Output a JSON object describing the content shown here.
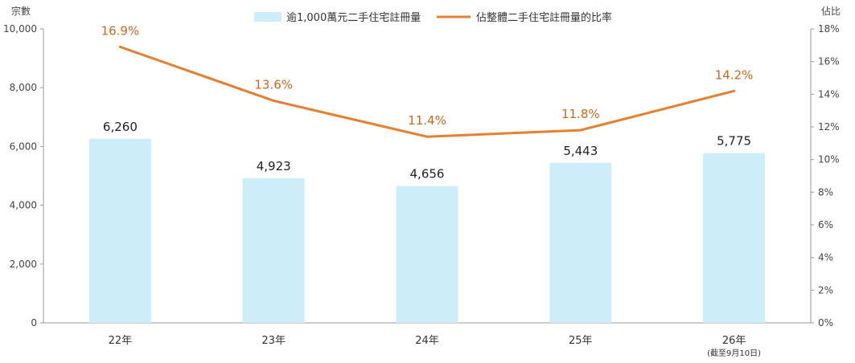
{
  "chart_data": {
    "type": "bar",
    "categories": [
      "22年",
      "23年",
      "24年",
      "25年",
      "26年"
    ],
    "category_notes": [
      "",
      "",
      "",
      "",
      "(截至9月10日)"
    ],
    "y_left_title": "宗數",
    "y_right_title": "佔比",
    "y_left_ticks": [
      "0",
      "2,000",
      "4,000",
      "6,000",
      "8,000",
      "10,000"
    ],
    "y_right_ticks": [
      "0%",
      "2%",
      "4%",
      "6%",
      "8%",
      "10%",
      "12%",
      "14%",
      "16%",
      "18%"
    ],
    "ylim_left": [
      0,
      10000
    ],
    "ylim_right": [
      0,
      18
    ],
    "series": [
      {
        "name": "逾1,000萬元二手住宅註冊量",
        "kind": "bar",
        "axis": "left",
        "color": "#cdeef9",
        "values": [
          6260,
          4923,
          4656,
          5443,
          5775
        ],
        "labels": [
          "6,260",
          "4,923",
          "4,656",
          "5,443",
          "5,775"
        ]
      },
      {
        "name": "佔整體二手住宅註冊量的比率",
        "kind": "line",
        "axis": "right",
        "color": "#e87f2e",
        "label_color": "#d0661c",
        "values": [
          16.9,
          13.6,
          11.4,
          11.8,
          14.2
        ],
        "labels": [
          "16.9%",
          "13.6%",
          "11.4%",
          "11.8%",
          "14.2%"
        ]
      }
    ],
    "legend_position": "top-center",
    "grid": false
  }
}
